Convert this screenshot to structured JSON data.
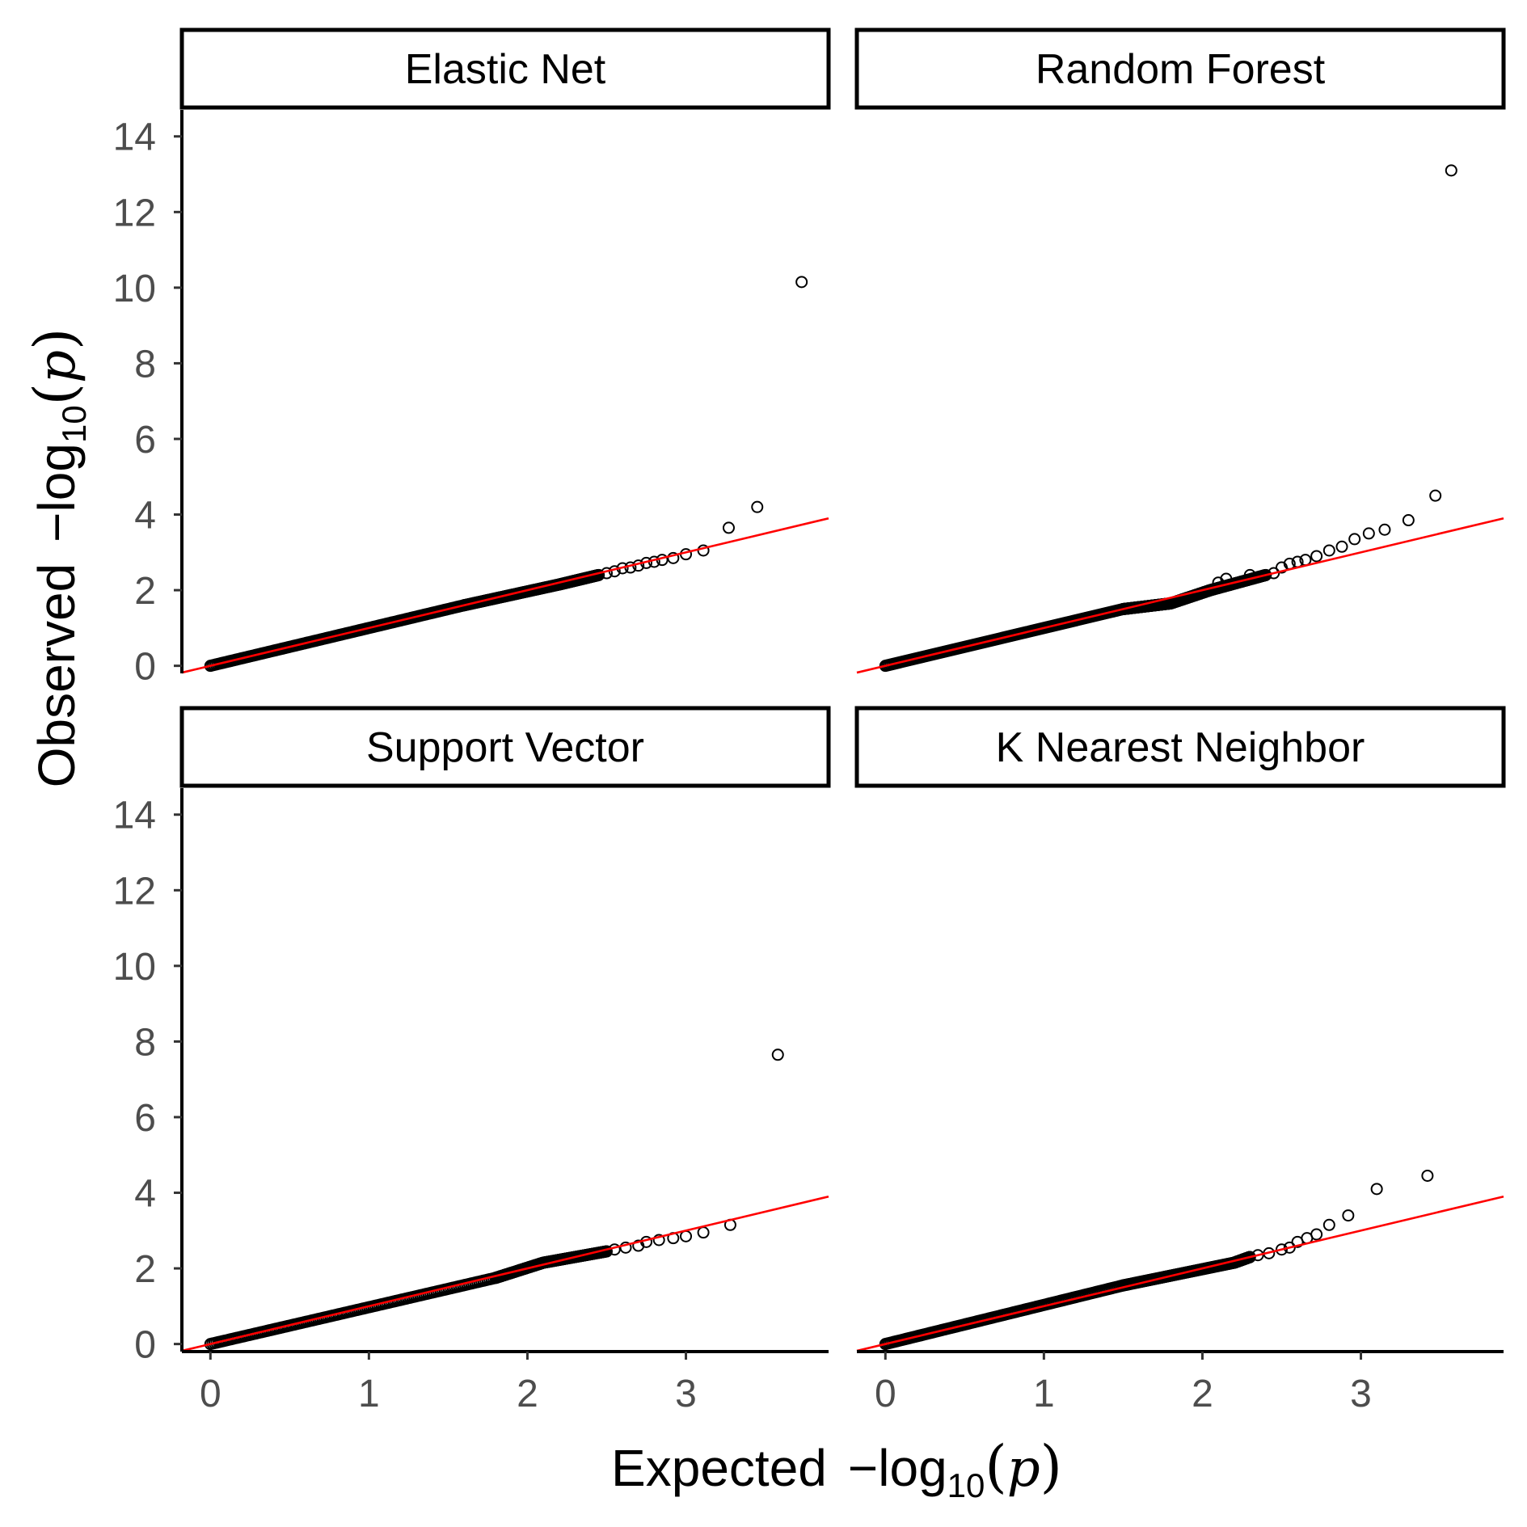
{
  "chart_data": {
    "type": "scatter",
    "layout": "facet-grid-2x2",
    "xlabel": {
      "prefix": "Expected",
      "math": "-log10(p)"
    },
    "ylabel": {
      "prefix": "Observed",
      "math": "-log10(p)"
    },
    "xlim": [
      -0.18,
      3.9
    ],
    "ylim": [
      -0.2,
      14.7
    ],
    "xticks": [
      0,
      1,
      2,
      3
    ],
    "yticks": [
      0,
      2,
      4,
      6,
      8,
      10,
      12,
      14
    ],
    "grid": false,
    "legend": "none",
    "point_color": "#000000",
    "reference_line": {
      "color": "#ff0000",
      "intercept": 0,
      "slope": 1
    },
    "panels": [
      {
        "title": "Elastic Net",
        "dense_segments": [
          [
            0,
            0,
            1.6,
            1.6
          ],
          [
            1.6,
            1.6,
            2.2,
            2.15
          ],
          [
            2.2,
            2.15,
            2.45,
            2.4
          ]
        ],
        "points": [
          [
            2.5,
            2.45
          ],
          [
            2.55,
            2.5
          ],
          [
            2.6,
            2.58
          ],
          [
            2.65,
            2.6
          ],
          [
            2.7,
            2.65
          ],
          [
            2.75,
            2.72
          ],
          [
            2.8,
            2.75
          ],
          [
            2.85,
            2.8
          ],
          [
            2.92,
            2.85
          ],
          [
            3.0,
            2.95
          ],
          [
            3.11,
            3.05
          ],
          [
            3.27,
            3.65
          ],
          [
            3.45,
            4.2
          ],
          [
            3.73,
            10.15
          ]
        ]
      },
      {
        "title": "Random Forest",
        "dense_segments": [
          [
            0,
            0,
            1.5,
            1.5
          ],
          [
            1.5,
            1.5,
            1.8,
            1.65
          ],
          [
            1.8,
            1.65,
            2.05,
            2.0
          ],
          [
            2.05,
            2.0,
            2.4,
            2.4
          ]
        ],
        "points": [
          [
            2.1,
            2.2
          ],
          [
            2.15,
            2.3
          ],
          [
            2.3,
            2.4
          ],
          [
            2.45,
            2.45
          ],
          [
            2.5,
            2.6
          ],
          [
            2.55,
            2.7
          ],
          [
            2.6,
            2.75
          ],
          [
            2.65,
            2.8
          ],
          [
            2.72,
            2.9
          ],
          [
            2.8,
            3.05
          ],
          [
            2.88,
            3.15
          ],
          [
            2.96,
            3.35
          ],
          [
            3.05,
            3.5
          ],
          [
            3.15,
            3.6
          ],
          [
            3.3,
            3.85
          ],
          [
            3.47,
            4.5
          ],
          [
            3.57,
            13.1
          ]
        ]
      },
      {
        "title": "Support Vector",
        "dense_segments": [
          [
            0,
            0,
            1.8,
            1.75
          ],
          [
            1.8,
            1.75,
            2.1,
            2.15
          ],
          [
            2.1,
            2.15,
            2.5,
            2.45
          ]
        ],
        "points": [
          [
            2.55,
            2.5
          ],
          [
            2.62,
            2.55
          ],
          [
            2.7,
            2.6
          ],
          [
            2.75,
            2.7
          ],
          [
            2.83,
            2.75
          ],
          [
            2.92,
            2.8
          ],
          [
            3.0,
            2.85
          ],
          [
            3.11,
            2.95
          ],
          [
            3.28,
            3.15
          ],
          [
            3.58,
            7.65
          ]
        ]
      },
      {
        "title": "K Nearest Neighbor",
        "dense_segments": [
          [
            0,
            0,
            1.5,
            1.55
          ],
          [
            1.5,
            1.55,
            2.2,
            2.15
          ],
          [
            2.2,
            2.15,
            2.3,
            2.3
          ]
        ],
        "points": [
          [
            2.35,
            2.35
          ],
          [
            2.42,
            2.4
          ],
          [
            2.5,
            2.5
          ],
          [
            2.55,
            2.55
          ],
          [
            2.6,
            2.7
          ],
          [
            2.66,
            2.8
          ],
          [
            2.72,
            2.9
          ],
          [
            2.8,
            3.15
          ],
          [
            2.92,
            3.4
          ],
          [
            3.1,
            4.1
          ],
          [
            3.42,
            4.45
          ]
        ]
      }
    ]
  }
}
